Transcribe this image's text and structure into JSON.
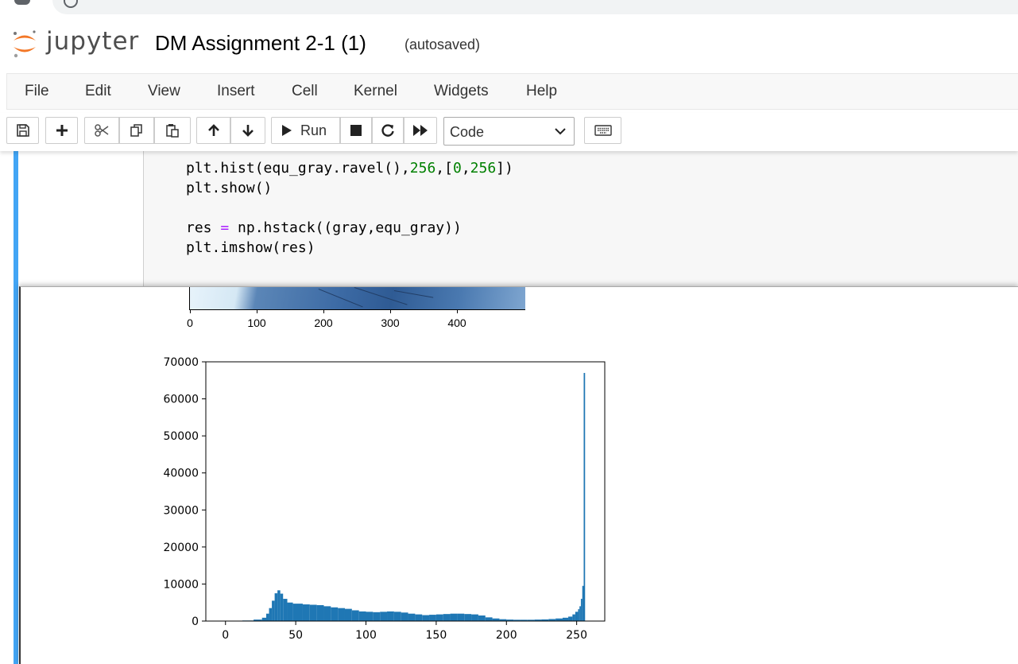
{
  "app": {
    "logo_text": "jupyter",
    "notebook_title": "DM Assignment 2-1 (1)",
    "autosave_status": "(autosaved)"
  },
  "menu": [
    "File",
    "Edit",
    "View",
    "Insert",
    "Cell",
    "Kernel",
    "Widgets",
    "Help"
  ],
  "toolbar": {
    "run_label": "Run",
    "cell_type": "Code",
    "icons": [
      "save-icon",
      "add-cell-icon",
      "cut-icon",
      "copy-icon",
      "paste-icon",
      "move-up-icon",
      "move-down-icon",
      "run-icon",
      "stop-icon",
      "restart-icon",
      "fast-forward-icon",
      "keyboard-icon"
    ]
  },
  "cell": {
    "code_lines": [
      "plt.hist(equ_gray.ravel(),256,[0,256])",
      "plt.show()",
      "",
      "res = np.hstack((gray,equ_gray))",
      "plt.imshow(res)"
    ]
  },
  "image_output": {
    "x_ticks": [
      "0",
      "100",
      "200",
      "300",
      "400"
    ]
  },
  "chart_data": {
    "type": "bar",
    "title": "",
    "xlabel": "",
    "ylabel": "",
    "xlim": [
      -14,
      270
    ],
    "ylim": [
      0,
      70000
    ],
    "x_ticks": [
      0,
      50,
      100,
      150,
      200,
      250
    ],
    "y_ticks": [
      0,
      10000,
      20000,
      30000,
      40000,
      50000,
      60000,
      70000
    ],
    "bar_color": "#1f77b4",
    "series": [
      {
        "points": [
          [
            12,
            150
          ],
          [
            20,
            400
          ],
          [
            26,
            900
          ],
          [
            29,
            2000
          ],
          [
            31,
            3500
          ],
          [
            33,
            5500
          ],
          [
            35,
            7500
          ],
          [
            37,
            8300
          ],
          [
            39,
            7400
          ],
          [
            41,
            6000
          ],
          [
            44,
            5000
          ],
          [
            48,
            4700
          ],
          [
            55,
            4500
          ],
          [
            60,
            4400
          ],
          [
            65,
            4300
          ],
          [
            70,
            4000
          ],
          [
            75,
            3700
          ],
          [
            80,
            3500
          ],
          [
            85,
            3300
          ],
          [
            90,
            2900
          ],
          [
            95,
            2600
          ],
          [
            100,
            2500
          ],
          [
            105,
            2400
          ],
          [
            110,
            2500
          ],
          [
            115,
            2600
          ],
          [
            120,
            2500
          ],
          [
            125,
            2300
          ],
          [
            130,
            2000
          ],
          [
            135,
            1800
          ],
          [
            140,
            1600
          ],
          [
            145,
            1700
          ],
          [
            150,
            1800
          ],
          [
            155,
            1900
          ],
          [
            160,
            2000
          ],
          [
            165,
            2000
          ],
          [
            170,
            1900
          ],
          [
            175,
            1800
          ],
          [
            180,
            1500
          ],
          [
            185,
            1000
          ],
          [
            190,
            700
          ],
          [
            195,
            500
          ],
          [
            200,
            400
          ],
          [
            205,
            350
          ],
          [
            210,
            350
          ],
          [
            215,
            350
          ],
          [
            220,
            400
          ],
          [
            225,
            450
          ],
          [
            230,
            550
          ],
          [
            235,
            700
          ],
          [
            240,
            900
          ],
          [
            244,
            1200
          ],
          [
            247,
            1800
          ],
          [
            249,
            2500
          ],
          [
            251,
            3200
          ],
          [
            252,
            4000
          ],
          [
            253,
            6000
          ],
          [
            254,
            9500
          ],
          [
            255,
            67000
          ]
        ]
      }
    ]
  }
}
